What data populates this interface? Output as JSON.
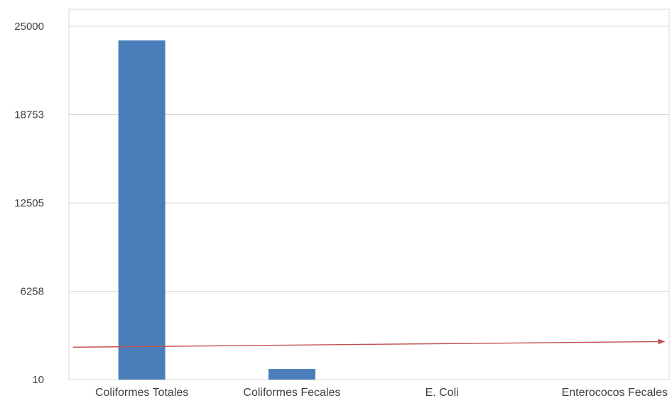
{
  "chart_data": {
    "type": "bar",
    "title": "",
    "xlabel": "",
    "ylabel": "",
    "categories": [
      "Coliformes Totales",
      "Coliformes Fecales",
      "E. Coli",
      "Enterococos Fecales"
    ],
    "values": [
      24000,
      760,
      0,
      0
    ],
    "yticks": [
      "10",
      "6258",
      "12505",
      "18753",
      "25000"
    ],
    "ylim": [
      10,
      25000
    ],
    "grid": true,
    "legend": "none",
    "reference_line": {
      "from": [
        0,
        2300
      ],
      "to": [
        3,
        2700
      ],
      "color": "#c0504d",
      "arrow": true
    },
    "colors": {
      "bar": "#4a7ebb",
      "grid": "#d9d9d9",
      "text": "#404040",
      "arrow": "#c0504d"
    }
  }
}
